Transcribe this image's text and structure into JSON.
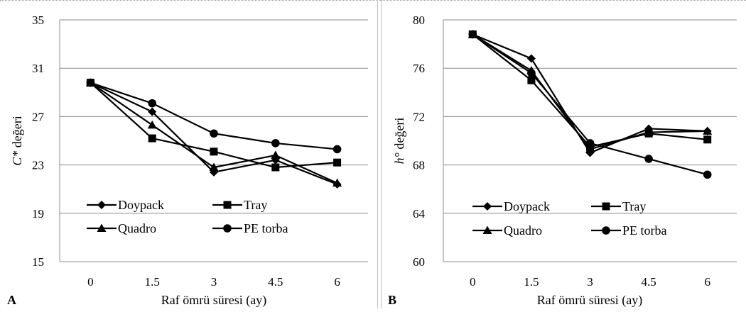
{
  "chart_data": [
    {
      "type": "line",
      "panel_label": "A",
      "xlabel": "Raf ömrü süresi (ay)",
      "ylabel_italic": "C*",
      "ylabel_rest": " değeri",
      "categories": [
        "0",
        "1.5",
        "3",
        "4.5",
        "6"
      ],
      "ylim": [
        15,
        35
      ],
      "yticks": [
        15,
        19,
        23,
        27,
        31,
        35
      ],
      "grid": "horizontal",
      "legend_position": "bottom-left",
      "series": [
        {
          "name": "Doypack",
          "marker": "diamond",
          "values": [
            29.8,
            27.4,
            22.4,
            23.4,
            21.4
          ]
        },
        {
          "name": "Tray",
          "marker": "square",
          "values": [
            29.8,
            25.2,
            24.1,
            22.8,
            23.2
          ]
        },
        {
          "name": "Quadro",
          "marker": "triangle",
          "values": [
            29.8,
            26.3,
            22.8,
            23.8,
            21.5
          ]
        },
        {
          "name": "PE torba",
          "marker": "circle",
          "values": [
            29.8,
            28.1,
            25.6,
            24.8,
            24.3
          ]
        }
      ]
    },
    {
      "type": "line",
      "panel_label": "B",
      "xlabel": "Raf ömrü süresi (ay)",
      "ylabel_italic": "h°",
      "ylabel_rest": " değeri",
      "categories": [
        "0",
        "1.5",
        "3",
        "4.5",
        "6"
      ],
      "ylim": [
        60,
        80
      ],
      "yticks": [
        60,
        64,
        68,
        72,
        76,
        80
      ],
      "grid": "horizontal",
      "legend_position": "bottom-left",
      "series": [
        {
          "name": "Doypack",
          "marker": "diamond",
          "values": [
            78.8,
            76.8,
            69.0,
            71.0,
            70.8
          ]
        },
        {
          "name": "Tray",
          "marker": "square",
          "values": [
            78.8,
            75.0,
            69.5,
            70.6,
            70.1
          ]
        },
        {
          "name": "Quadro",
          "marker": "triangle",
          "values": [
            78.8,
            75.8,
            69.3,
            70.7,
            70.8
          ]
        },
        {
          "name": "PE torba",
          "marker": "circle",
          "values": [
            78.8,
            75.6,
            69.8,
            68.5,
            67.2
          ]
        }
      ]
    }
  ]
}
